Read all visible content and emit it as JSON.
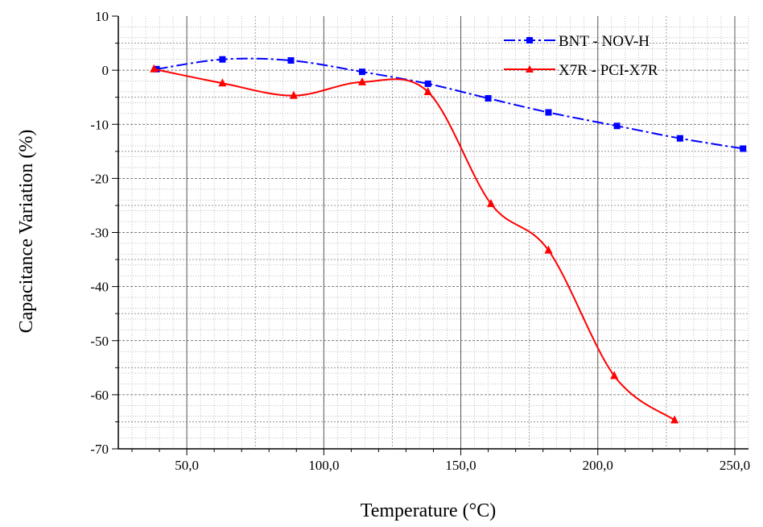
{
  "chart_data": {
    "type": "line",
    "xlabel": "Temperature (°C)",
    "ylabel": "Capacitance Variation (%)",
    "xlim": [
      25,
      255
    ],
    "ylim": [
      -70,
      10
    ],
    "x_ticks": [
      50,
      100,
      150,
      200,
      250
    ],
    "x_tick_labels": [
      "50,0",
      "100,0",
      "150,0",
      "200,0",
      "250,0"
    ],
    "y_ticks": [
      10,
      0,
      -10,
      -20,
      -30,
      -40,
      -50,
      -60,
      -70
    ],
    "y_tick_labels": [
      "10",
      "0",
      "-10",
      "-20",
      "-30",
      "-40",
      "-50",
      "-60",
      "-70"
    ],
    "grid": true,
    "legend_position": "top-right",
    "series": [
      {
        "name": "BNT - NOV-H",
        "color": "#0000ff",
        "marker": "square",
        "line_style": "dash-dot",
        "x": [
          39,
          63,
          88,
          114,
          138,
          160,
          182,
          207,
          230,
          253
        ],
        "y": [
          0.2,
          2.0,
          1.8,
          -0.3,
          -2.5,
          -5.2,
          -7.8,
          -10.3,
          -12.6,
          -14.5
        ]
      },
      {
        "name": "X7R - PCI-X7R",
        "color": "#ff0000",
        "marker": "triangle",
        "line_style": "solid",
        "x": [
          38,
          63,
          89,
          114,
          138,
          161,
          182,
          206,
          228
        ],
        "y": [
          0.2,
          -2.4,
          -4.7,
          -2.2,
          -4.0,
          -24.7,
          -33.3,
          -56.5,
          -64.7
        ]
      }
    ]
  }
}
